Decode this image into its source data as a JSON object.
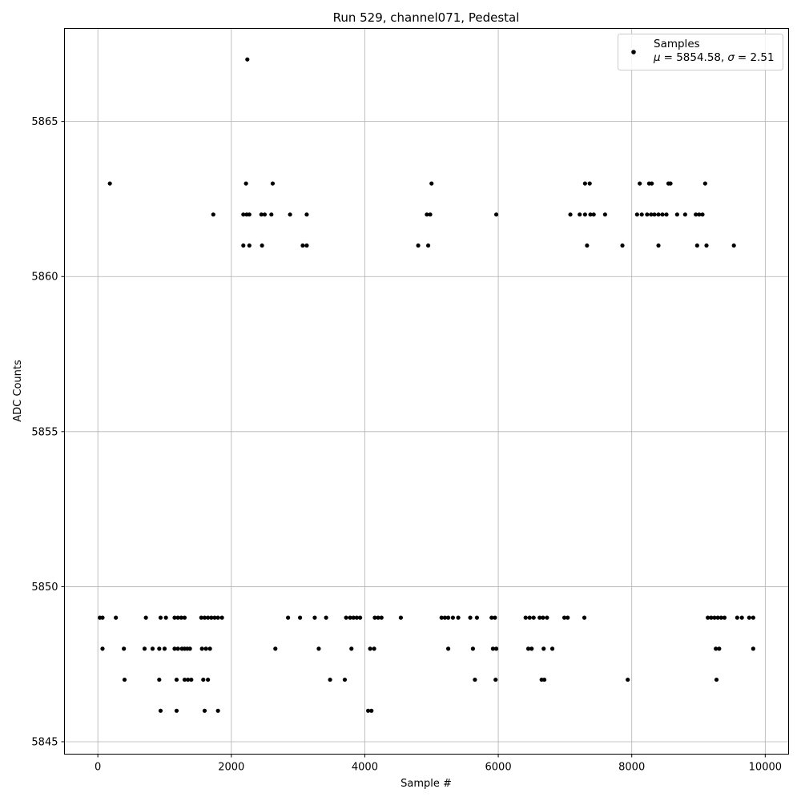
{
  "chart_data": {
    "type": "scatter",
    "title": "Run 529, channel071, Pedestal",
    "xlabel": "Sample #",
    "ylabel": "ADC Counts",
    "xlim": [
      -500,
      10350
    ],
    "ylim": [
      5844.6,
      5868.0
    ],
    "x_ticks": [
      0,
      2000,
      4000,
      6000,
      8000,
      10000
    ],
    "x_tick_labels": [
      "0",
      "2000",
      "4000",
      "6000",
      "8000",
      "10000"
    ],
    "y_ticks": [
      5845,
      5850,
      5855,
      5860,
      5865
    ],
    "y_tick_labels": [
      "5845",
      "5850",
      "5855",
      "5860",
      "5865"
    ],
    "grid": true,
    "legend": {
      "position": "top-right",
      "label": "Samples",
      "stats": {
        "mu_symbol": "μ",
        "mu_value": "= 5854.58,",
        "sigma_symbol": "σ",
        "sigma_value": "= 2.51"
      }
    },
    "marker_color": "#000000",
    "series": [
      {
        "name": "Samples",
        "points": [
          [
            2240,
            5867
          ],
          [
            180,
            5863
          ],
          [
            2220,
            5863
          ],
          [
            2620,
            5863
          ],
          [
            5000,
            5863
          ],
          [
            7300,
            5863
          ],
          [
            7370,
            5863
          ],
          [
            8120,
            5863
          ],
          [
            8260,
            5863
          ],
          [
            8300,
            5863
          ],
          [
            8550,
            5863
          ],
          [
            8580,
            5863
          ],
          [
            9100,
            5863
          ],
          [
            1730,
            5862
          ],
          [
            2180,
            5862
          ],
          [
            2230,
            5862
          ],
          [
            2270,
            5862
          ],
          [
            2450,
            5862
          ],
          [
            2500,
            5862
          ],
          [
            2600,
            5862
          ],
          [
            2880,
            5862
          ],
          [
            3130,
            5862
          ],
          [
            4930,
            5862
          ],
          [
            4980,
            5862
          ],
          [
            5970,
            5862
          ],
          [
            7080,
            5862
          ],
          [
            7220,
            5862
          ],
          [
            7300,
            5862
          ],
          [
            7380,
            5862
          ],
          [
            7430,
            5862
          ],
          [
            7600,
            5862
          ],
          [
            8080,
            5862
          ],
          [
            8150,
            5862
          ],
          [
            8230,
            5862
          ],
          [
            8290,
            5862
          ],
          [
            8340,
            5862
          ],
          [
            8400,
            5862
          ],
          [
            8460,
            5862
          ],
          [
            8520,
            5862
          ],
          [
            8680,
            5862
          ],
          [
            8800,
            5862
          ],
          [
            8960,
            5862
          ],
          [
            9010,
            5862
          ],
          [
            9060,
            5862
          ],
          [
            2180,
            5861
          ],
          [
            2270,
            5861
          ],
          [
            2460,
            5861
          ],
          [
            3070,
            5861
          ],
          [
            3130,
            5861
          ],
          [
            4800,
            5861
          ],
          [
            4950,
            5861
          ],
          [
            7330,
            5861
          ],
          [
            7860,
            5861
          ],
          [
            8400,
            5861
          ],
          [
            8980,
            5861
          ],
          [
            9120,
            5861
          ],
          [
            9530,
            5861
          ],
          [
            940,
            5846
          ],
          [
            1180,
            5846
          ],
          [
            1600,
            5846
          ],
          [
            1800,
            5846
          ],
          [
            4050,
            5846
          ],
          [
            4100,
            5846
          ],
          [
            400,
            5847
          ],
          [
            920,
            5847
          ],
          [
            1180,
            5847
          ],
          [
            1300,
            5847
          ],
          [
            1350,
            5847
          ],
          [
            1400,
            5847
          ],
          [
            1580,
            5847
          ],
          [
            1650,
            5847
          ],
          [
            3480,
            5847
          ],
          [
            3700,
            5847
          ],
          [
            5650,
            5847
          ],
          [
            5960,
            5847
          ],
          [
            6650,
            5847
          ],
          [
            6690,
            5847
          ],
          [
            7940,
            5847
          ],
          [
            9270,
            5847
          ],
          [
            70,
            5848
          ],
          [
            390,
            5848
          ],
          [
            700,
            5848
          ],
          [
            820,
            5848
          ],
          [
            920,
            5848
          ],
          [
            1000,
            5848
          ],
          [
            1150,
            5848
          ],
          [
            1200,
            5848
          ],
          [
            1260,
            5848
          ],
          [
            1300,
            5848
          ],
          [
            1340,
            5848
          ],
          [
            1380,
            5848
          ],
          [
            1560,
            5848
          ],
          [
            1620,
            5848
          ],
          [
            1680,
            5848
          ],
          [
            2660,
            5848
          ],
          [
            3310,
            5848
          ],
          [
            3800,
            5848
          ],
          [
            4080,
            5848
          ],
          [
            4140,
            5848
          ],
          [
            5250,
            5848
          ],
          [
            5620,
            5848
          ],
          [
            5920,
            5848
          ],
          [
            5970,
            5848
          ],
          [
            6450,
            5848
          ],
          [
            6500,
            5848
          ],
          [
            6680,
            5848
          ],
          [
            6810,
            5848
          ],
          [
            9260,
            5848
          ],
          [
            9310,
            5848
          ],
          [
            9820,
            5848
          ],
          [
            30,
            5849
          ],
          [
            70,
            5849
          ],
          [
            270,
            5849
          ],
          [
            720,
            5849
          ],
          [
            940,
            5849
          ],
          [
            1020,
            5849
          ],
          [
            1150,
            5849
          ],
          [
            1200,
            5849
          ],
          [
            1250,
            5849
          ],
          [
            1300,
            5849
          ],
          [
            1550,
            5849
          ],
          [
            1600,
            5849
          ],
          [
            1650,
            5849
          ],
          [
            1700,
            5849
          ],
          [
            1750,
            5849
          ],
          [
            1800,
            5849
          ],
          [
            1860,
            5849
          ],
          [
            2850,
            5849
          ],
          [
            3030,
            5849
          ],
          [
            3250,
            5849
          ],
          [
            3420,
            5849
          ],
          [
            3720,
            5849
          ],
          [
            3780,
            5849
          ],
          [
            3830,
            5849
          ],
          [
            3880,
            5849
          ],
          [
            3930,
            5849
          ],
          [
            4150,
            5849
          ],
          [
            4200,
            5849
          ],
          [
            4250,
            5849
          ],
          [
            4540,
            5849
          ],
          [
            5150,
            5849
          ],
          [
            5200,
            5849
          ],
          [
            5250,
            5849
          ],
          [
            5320,
            5849
          ],
          [
            5400,
            5849
          ],
          [
            5580,
            5849
          ],
          [
            5680,
            5849
          ],
          [
            5900,
            5849
          ],
          [
            5950,
            5849
          ],
          [
            6410,
            5849
          ],
          [
            6470,
            5849
          ],
          [
            6530,
            5849
          ],
          [
            6620,
            5849
          ],
          [
            6670,
            5849
          ],
          [
            6730,
            5849
          ],
          [
            6990,
            5849
          ],
          [
            7040,
            5849
          ],
          [
            7290,
            5849
          ],
          [
            9140,
            5849
          ],
          [
            9190,
            5849
          ],
          [
            9240,
            5849
          ],
          [
            9290,
            5849
          ],
          [
            9340,
            5849
          ],
          [
            9390,
            5849
          ],
          [
            9580,
            5849
          ],
          [
            9650,
            5849
          ],
          [
            9760,
            5849
          ],
          [
            9820,
            5849
          ]
        ]
      }
    ]
  }
}
